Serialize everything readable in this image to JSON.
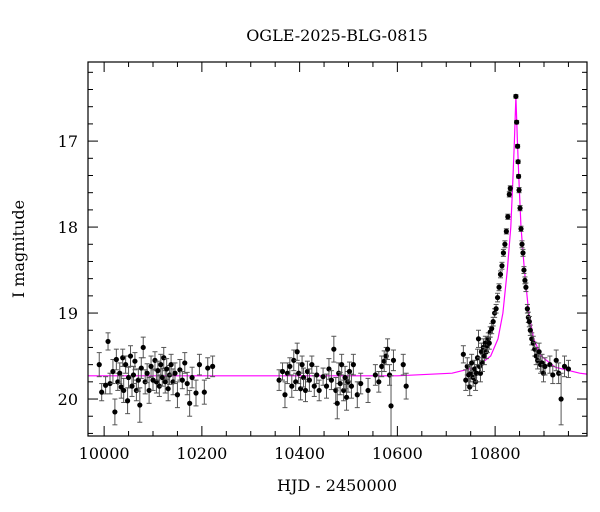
{
  "chart_data": {
    "type": "scatter",
    "title": "OGLE-2025-BLG-0815",
    "xlabel": "HJD - 2450000",
    "ylabel": "I magnitude",
    "xlim": [
      9967,
      10988
    ],
    "ylim": [
      20.43,
      16.08
    ],
    "y_inverted": true,
    "grid": false,
    "x_ticks": [
      10000,
      10200,
      10400,
      10600,
      10800
    ],
    "x_tick_labels": [
      "10000",
      "10200",
      "10400",
      "10600",
      "10800"
    ],
    "y_ticks": [
      17,
      18,
      19,
      20
    ],
    "y_tick_labels": [
      "17",
      "18",
      "19",
      "20"
    ],
    "colors": {
      "points": "#000000",
      "errorbars": "#555555",
      "model": "#ff00ff",
      "frame": "#000000"
    },
    "series": [
      {
        "kind": "data-with-errorbars",
        "points": [
          [
            9990,
            19.6,
            0.14
          ],
          [
            9995,
            19.92,
            0.1
          ],
          [
            10003,
            19.84,
            0.1
          ],
          [
            10008,
            19.33,
            0.1
          ],
          [
            10012,
            19.82,
            0.12
          ],
          [
            10018,
            19.68,
            0.14
          ],
          [
            10022,
            20.15,
            0.15
          ],
          [
            10025,
            19.54,
            0.12
          ],
          [
            10028,
            19.8,
            0.1
          ],
          [
            10032,
            19.7,
            0.12
          ],
          [
            10035,
            19.86,
            0.13
          ],
          [
            10038,
            19.52,
            0.1
          ],
          [
            10040,
            19.9,
            0.14
          ],
          [
            10044,
            19.6,
            0.1
          ],
          [
            10048,
            20.02,
            0.15
          ],
          [
            10050,
            19.75,
            0.12
          ],
          [
            10054,
            19.5,
            0.12
          ],
          [
            10057,
            19.85,
            0.12
          ],
          [
            10060,
            19.72,
            0.1
          ],
          [
            10063,
            19.56,
            0.1
          ],
          [
            10066,
            19.9,
            0.12
          ],
          [
            10070,
            19.78,
            0.13
          ],
          [
            10073,
            20.07,
            0.2
          ],
          [
            10076,
            19.64,
            0.12
          ],
          [
            10080,
            19.4,
            0.12
          ],
          [
            10084,
            19.8,
            0.14
          ],
          [
            10088,
            19.7,
            0.11
          ],
          [
            10092,
            19.9,
            0.15
          ],
          [
            10096,
            19.62,
            0.12
          ],
          [
            10100,
            19.78,
            0.12
          ],
          [
            10104,
            19.55,
            0.1
          ],
          [
            10107,
            19.8,
            0.13
          ],
          [
            10110,
            19.67,
            0.11
          ],
          [
            10113,
            19.85,
            0.12
          ],
          [
            10116,
            19.6,
            0.12
          ],
          [
            10119,
            19.75,
            0.1
          ],
          [
            10122,
            19.52,
            0.12
          ],
          [
            10125,
            19.8,
            0.13
          ],
          [
            10128,
            19.65,
            0.12
          ],
          [
            10131,
            19.88,
            0.14
          ],
          [
            10134,
            19.72,
            0.11
          ],
          [
            10137,
            19.6,
            0.12
          ],
          [
            10141,
            19.8,
            0.15
          ],
          [
            10145,
            19.7,
            0.12
          ],
          [
            10150,
            19.95,
            0.15
          ],
          [
            10155,
            19.66,
            0.12
          ],
          [
            10160,
            19.78,
            0.1
          ],
          [
            10165,
            19.58,
            0.12
          ],
          [
            10170,
            19.82,
            0.13
          ],
          [
            10175,
            20.05,
            0.15
          ],
          [
            10180,
            19.75,
            0.12
          ],
          [
            10188,
            19.93,
            0.15
          ],
          [
            10195,
            19.6,
            0.12
          ],
          [
            10205,
            19.92,
            0.14
          ],
          [
            10212,
            19.64,
            0.12
          ],
          [
            10222,
            19.62,
            0.12
          ],
          [
            10358,
            19.78,
            0.12
          ],
          [
            10365,
            19.68,
            0.1
          ],
          [
            10370,
            19.95,
            0.15
          ],
          [
            10375,
            19.7,
            0.12
          ],
          [
            10380,
            19.62,
            0.1
          ],
          [
            10384,
            19.85,
            0.13
          ],
          [
            10388,
            19.55,
            0.12
          ],
          [
            10392,
            19.8,
            0.1
          ],
          [
            10395,
            19.45,
            0.1
          ],
          [
            10398,
            19.7,
            0.12
          ],
          [
            10402,
            19.88,
            0.13
          ],
          [
            10405,
            19.6,
            0.1
          ],
          [
            10408,
            19.75,
            0.11
          ],
          [
            10412,
            19.9,
            0.13
          ],
          [
            10416,
            19.68,
            0.12
          ],
          [
            10420,
            19.78,
            0.13
          ],
          [
            10425,
            19.6,
            0.1
          ],
          [
            10430,
            19.85,
            0.12
          ],
          [
            10435,
            19.72,
            0.1
          ],
          [
            10440,
            19.9,
            0.12
          ],
          [
            10448,
            19.74,
            0.1
          ],
          [
            10455,
            19.85,
            0.14
          ],
          [
            10460,
            19.65,
            0.12
          ],
          [
            10465,
            19.78,
            0.11
          ],
          [
            10470,
            19.42,
            0.15
          ],
          [
            10474,
            19.9,
            0.15
          ],
          [
            10477,
            20.05,
            0.18
          ],
          [
            10480,
            19.7,
            0.12
          ],
          [
            10483,
            19.82,
            0.13
          ],
          [
            10486,
            19.6,
            0.12
          ],
          [
            10490,
            19.9,
            0.12
          ],
          [
            10493,
            19.75,
            0.13
          ],
          [
            10496,
            19.98,
            0.15
          ],
          [
            10499,
            19.8,
            0.12
          ],
          [
            10502,
            19.68,
            0.11
          ],
          [
            10506,
            19.85,
            0.14
          ],
          [
            10510,
            19.6,
            0.12
          ],
          [
            10518,
            19.95,
            0.15
          ],
          [
            10525,
            19.82,
            0.12
          ],
          [
            10540,
            19.9,
            0.14
          ],
          [
            10555,
            19.72,
            0.12
          ],
          [
            10562,
            19.8,
            0.12
          ],
          [
            10568,
            19.62,
            0.12
          ],
          [
            10573,
            19.56,
            0.12
          ],
          [
            10577,
            19.5,
            0.1
          ],
          [
            10580,
            19.42,
            0.12
          ],
          [
            10584,
            19.72,
            0.12
          ],
          [
            10587,
            20.08,
            0.35
          ],
          [
            10592,
            19.55,
            0.12
          ],
          [
            10612,
            19.6,
            0.12
          ],
          [
            10618,
            19.85,
            0.15
          ],
          [
            10735,
            19.48,
            0.1
          ],
          [
            10740,
            19.78,
            0.12
          ],
          [
            10743,
            19.62,
            0.1
          ],
          [
            10746,
            19.72,
            0.12
          ],
          [
            10748,
            19.86,
            0.1
          ],
          [
            10750,
            19.7,
            0.1
          ],
          [
            10752,
            19.58,
            0.1
          ],
          [
            10755,
            19.75,
            0.1
          ],
          [
            10758,
            19.65,
            0.1
          ],
          [
            10760,
            19.8,
            0.1
          ],
          [
            10762,
            19.7,
            0.1
          ],
          [
            10764,
            19.52,
            0.1
          ],
          [
            10766,
            19.3,
            0.1
          ],
          [
            10768,
            19.62,
            0.1
          ],
          [
            10770,
            19.7,
            0.1
          ],
          [
            10772,
            19.45,
            0.1
          ],
          [
            10774,
            19.58,
            0.1
          ],
          [
            10776,
            19.4,
            0.1
          ],
          [
            10778,
            19.5,
            0.1
          ],
          [
            10780,
            19.35,
            0.08
          ],
          [
            10782,
            19.45,
            0.08
          ],
          [
            10784,
            19.38,
            0.08
          ],
          [
            10786,
            19.3,
            0.07
          ],
          [
            10788,
            19.35,
            0.07
          ],
          [
            10790,
            19.22,
            0.06
          ],
          [
            10793,
            19.18,
            0.06
          ],
          [
            10796,
            19.1,
            0.05
          ],
          [
            10799,
            19.0,
            0.05
          ],
          [
            10802,
            18.95,
            0.05
          ],
          [
            10805,
            18.82,
            0.05
          ],
          [
            10808,
            18.7,
            0.04
          ],
          [
            10811,
            18.55,
            0.04
          ],
          [
            10814,
            18.45,
            0.04
          ],
          [
            10817,
            18.3,
            0.04
          ],
          [
            10820,
            18.2,
            0.04
          ],
          [
            10823,
            18.05,
            0.03
          ],
          [
            10826,
            17.88,
            0.03
          ],
          [
            10829,
            17.62,
            0.03
          ],
          [
            10831,
            17.55,
            0.03
          ],
          [
            10842.5,
            16.48,
            0.02
          ],
          [
            10844,
            16.78,
            0.02
          ],
          [
            10846,
            17.06,
            0.02
          ],
          [
            10847,
            17.24,
            0.02
          ],
          [
            10848,
            17.41,
            0.02
          ],
          [
            10849,
            17.57,
            0.03
          ],
          [
            10851,
            17.78,
            0.03
          ],
          [
            10853,
            18.02,
            0.03
          ],
          [
            10855,
            18.2,
            0.04
          ],
          [
            10857,
            18.3,
            0.04
          ],
          [
            10859,
            18.5,
            0.04
          ],
          [
            10861,
            18.62,
            0.04
          ],
          [
            10863,
            18.7,
            0.05
          ],
          [
            10866,
            18.95,
            0.05
          ],
          [
            10868,
            19.05,
            0.06
          ],
          [
            10870,
            19.1,
            0.06
          ],
          [
            10872,
            19.2,
            0.06
          ],
          [
            10875,
            19.3,
            0.07
          ],
          [
            10878,
            19.35,
            0.08
          ],
          [
            10881,
            19.42,
            0.08
          ],
          [
            10884,
            19.5,
            0.1
          ],
          [
            10887,
            19.55,
            0.1
          ],
          [
            10890,
            19.45,
            0.1
          ],
          [
            10893,
            19.6,
            0.1
          ],
          [
            10896,
            19.58,
            0.1
          ],
          [
            10899,
            19.7,
            0.1
          ],
          [
            10902,
            19.62,
            0.1
          ],
          [
            10912,
            19.6,
            0.1
          ],
          [
            10918,
            19.72,
            0.1
          ],
          [
            10925,
            19.55,
            0.12
          ],
          [
            10930,
            19.7,
            0.12
          ],
          [
            10935,
            20.0,
            0.3
          ],
          [
            10942,
            19.62,
            0.12
          ],
          [
            10950,
            19.65,
            0.1
          ]
        ]
      },
      {
        "kind": "model-curve",
        "x": [
          9967,
          10600,
          10712,
          10762,
          10791,
          10806,
          10816,
          10825,
          10832,
          10836,
          10839.5,
          10842.5,
          10845.5,
          10849,
          10853,
          10860,
          10869,
          10879,
          10894,
          10923,
          10973,
          10988
        ],
        "y": [
          19.73,
          19.73,
          19.7,
          19.63,
          19.5,
          19.3,
          19.0,
          18.5,
          18.0,
          17.5,
          17.0,
          16.48,
          17.0,
          17.5,
          18.0,
          18.5,
          19.0,
          19.3,
          19.5,
          19.63,
          19.7,
          19.71
        ]
      }
    ]
  }
}
